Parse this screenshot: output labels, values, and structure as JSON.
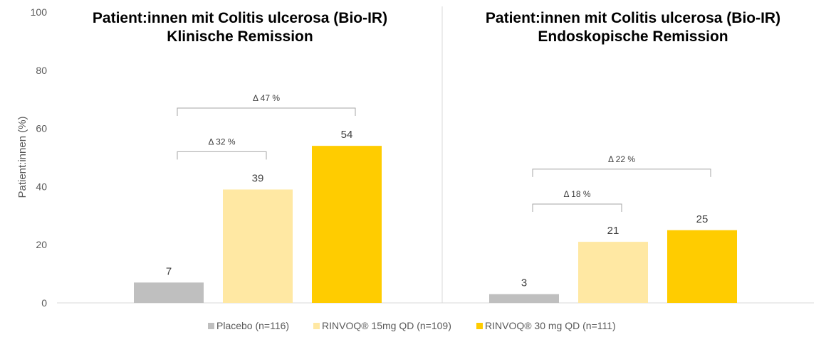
{
  "chart_data": {
    "type": "bar",
    "ylabel": "Patient:innen (%)",
    "ylim": [
      0,
      100
    ],
    "yticks": [
      0,
      20,
      40,
      60,
      80,
      100
    ],
    "grid": false,
    "legend_position": "bottom-center",
    "series": [
      {
        "name": "Placebo (n=116)",
        "color": "#bfbfbf"
      },
      {
        "name": "RINVOQ® 15mg QD (n=109)",
        "color": "#ffe8a3"
      },
      {
        "name": "RINVOQ® 30 mg QD (n=111)",
        "color": "#ffcc00"
      }
    ],
    "panels": [
      {
        "title_line1": "Patient:innen mit Colitis ulcerosa (Bio-IR)",
        "title_line2": "Klinische Remission",
        "values": [
          7,
          39,
          54
        ],
        "value_labels": [
          "7",
          "39",
          "54"
        ],
        "deltas": [
          {
            "label": "Δ 32 %",
            "from": 1,
            "to": 0,
            "level": 52
          },
          {
            "label": "Δ 47 %",
            "from": 2,
            "to": 0,
            "level": 67
          }
        ]
      },
      {
        "title_line1": "Patient:innen mit Colitis ulcerosa (Bio-IR)",
        "title_line2": "Endoskopische Remission",
        "values": [
          3,
          21,
          25
        ],
        "value_labels": [
          "3",
          "21",
          "25"
        ],
        "deltas": [
          {
            "label": "Δ 18 %",
            "from": 1,
            "to": 0,
            "level": 34
          },
          {
            "label": "Δ 22 %",
            "from": 2,
            "to": 0,
            "level": 46
          }
        ]
      }
    ]
  }
}
